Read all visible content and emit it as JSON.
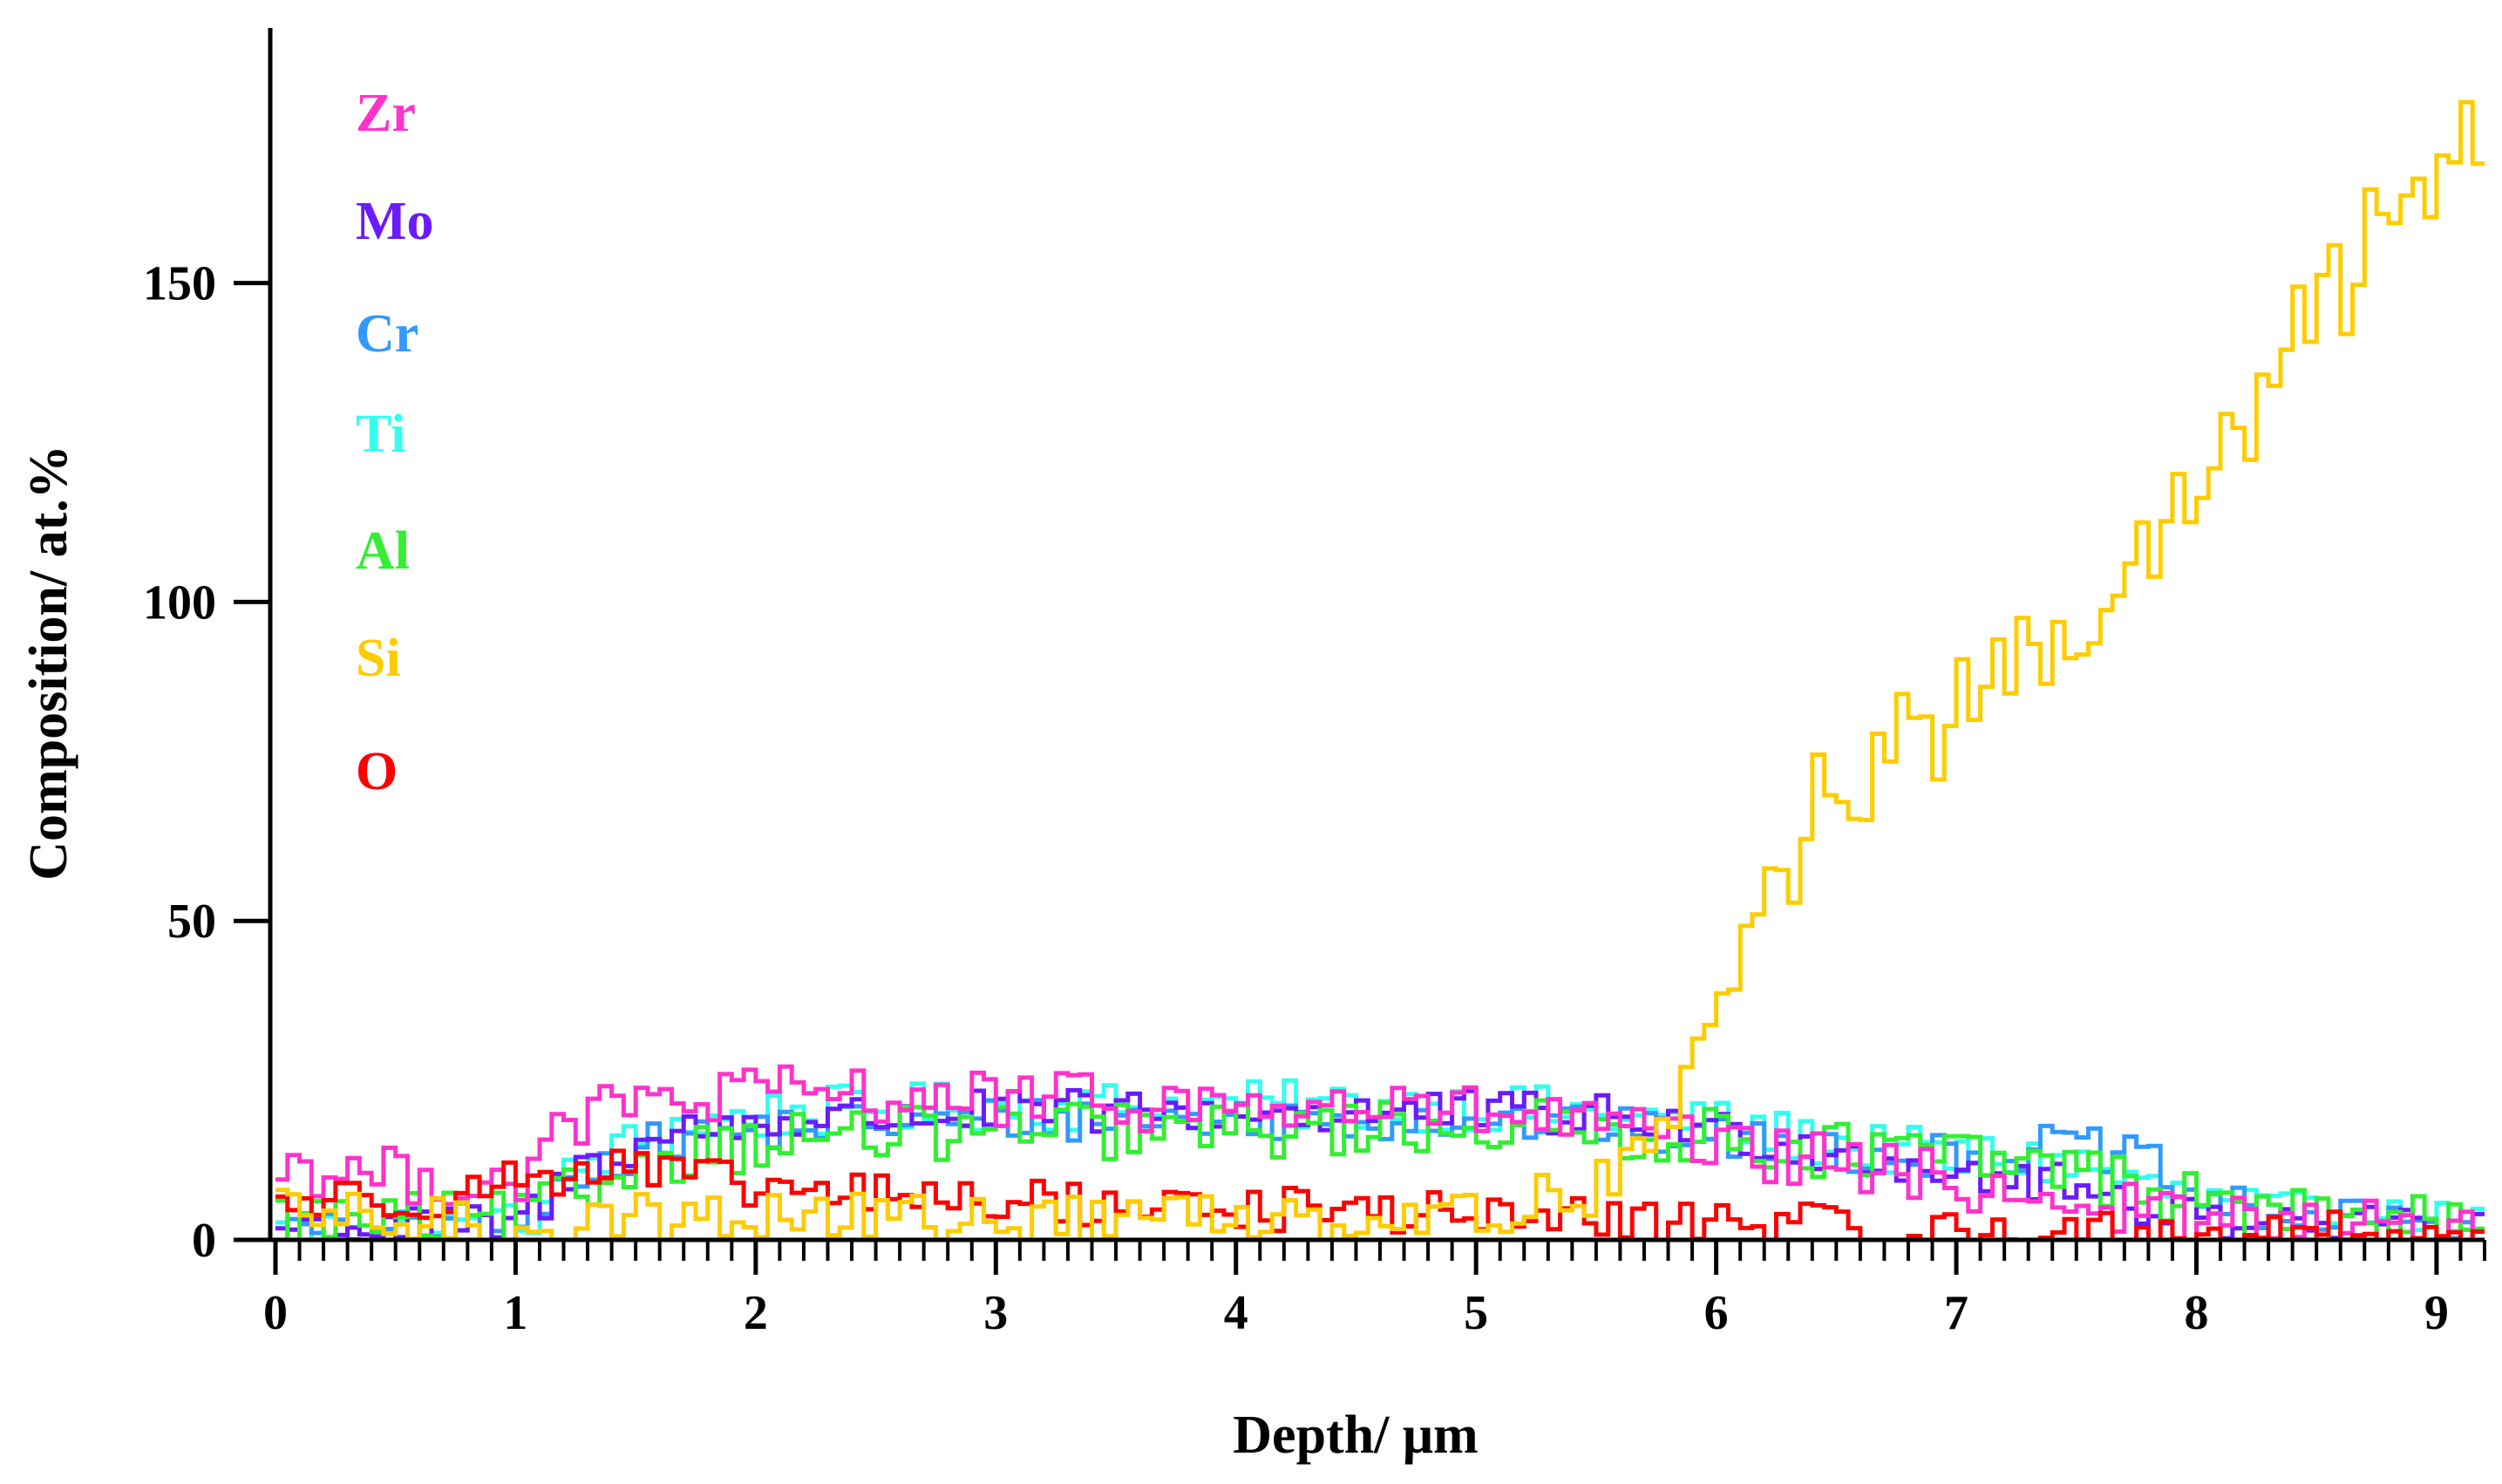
{
  "chart_data": {
    "type": "line",
    "title": "",
    "xlabel": "Depth/ μm",
    "ylabel": "Composition/ at.%",
    "xlim": [
      0,
      9.2
    ],
    "ylim": [
      0,
      190
    ],
    "x_ticks": [
      "0",
      "1",
      "2",
      "3",
      "4",
      "5",
      "6",
      "7",
      "8",
      "9"
    ],
    "y_ticks": [
      "0",
      "50",
      "100",
      "150"
    ],
    "grid": false,
    "legend_placement": "top-left",
    "step_width": 0.05,
    "series": [
      {
        "name": "Zr",
        "color": "#ff33cc",
        "points": [
          [
            0,
            12
          ],
          [
            0.5,
            10
          ],
          [
            1.0,
            9
          ],
          [
            1.3,
            20
          ],
          [
            1.7,
            22
          ],
          [
            2.2,
            23
          ],
          [
            3.0,
            22
          ],
          [
            4.0,
            21
          ],
          [
            5.0,
            20
          ],
          [
            5.5,
            18
          ],
          [
            6.0,
            14
          ],
          [
            6.5,
            12
          ],
          [
            7.0,
            9
          ],
          [
            7.5,
            6
          ],
          [
            8.0,
            3
          ],
          [
            8.5,
            2
          ],
          [
            9.2,
            1
          ]
        ],
        "amp": 4.5
      },
      {
        "name": "Mo",
        "color": "#6a1bff",
        "points": [
          [
            0,
            2
          ],
          [
            1.0,
            2
          ],
          [
            1.3,
            12
          ],
          [
            1.7,
            17
          ],
          [
            2.2,
            19
          ],
          [
            3.0,
            20
          ],
          [
            4.0,
            20
          ],
          [
            5.0,
            20
          ],
          [
            5.7,
            19
          ],
          [
            6.0,
            17
          ],
          [
            6.5,
            14
          ],
          [
            7.0,
            11
          ],
          [
            7.5,
            8
          ],
          [
            8.0,
            4
          ],
          [
            8.5,
            2
          ],
          [
            9.2,
            1
          ]
        ],
        "amp": 3.5
      },
      {
        "name": "Cr",
        "color": "#3399ff",
        "points": [
          [
            0,
            1
          ],
          [
            1.0,
            1
          ],
          [
            1.3,
            12
          ],
          [
            1.7,
            16
          ],
          [
            2.2,
            18
          ],
          [
            3.0,
            19
          ],
          [
            4.0,
            19
          ],
          [
            5.0,
            19
          ],
          [
            6.0,
            16
          ],
          [
            6.5,
            14
          ],
          [
            7.0,
            13
          ],
          [
            7.5,
            15
          ],
          [
            7.8,
            12
          ],
          [
            8.0,
            6
          ],
          [
            8.5,
            3
          ],
          [
            9.2,
            2
          ]
        ],
        "amp": 3.5
      },
      {
        "name": "Ti",
        "color": "#33ffee",
        "points": [
          [
            0,
            1
          ],
          [
            1.0,
            2
          ],
          [
            1.3,
            12
          ],
          [
            1.7,
            18
          ],
          [
            2.2,
            20
          ],
          [
            3.0,
            21
          ],
          [
            4.0,
            21
          ],
          [
            5.0,
            21
          ],
          [
            6.0,
            18
          ],
          [
            6.5,
            15
          ],
          [
            7.0,
            13
          ],
          [
            7.5,
            12
          ],
          [
            8.0,
            6
          ],
          [
            8.5,
            3
          ],
          [
            9.2,
            2
          ]
        ],
        "amp": 4
      },
      {
        "name": "Al",
        "color": "#33ee33",
        "points": [
          [
            0,
            3
          ],
          [
            1.0,
            3
          ],
          [
            1.3,
            8
          ],
          [
            1.7,
            14
          ],
          [
            2.2,
            16
          ],
          [
            3.0,
            17
          ],
          [
            4.0,
            17
          ],
          [
            5.0,
            18
          ],
          [
            6.0,
            16
          ],
          [
            6.5,
            14
          ],
          [
            7.0,
            13
          ],
          [
            7.5,
            11
          ],
          [
            8.0,
            6
          ],
          [
            8.5,
            3
          ],
          [
            9.2,
            2
          ]
        ],
        "amp": 4.5
      },
      {
        "name": "Si",
        "color": "#ffcc00",
        "points": [
          [
            0,
            4
          ],
          [
            1.0,
            2
          ],
          [
            1.3,
            3
          ],
          [
            2.0,
            4
          ],
          [
            3.0,
            3
          ],
          [
            4.0,
            4
          ],
          [
            5.0,
            4
          ],
          [
            5.5,
            8
          ],
          [
            5.8,
            20
          ],
          [
            6.0,
            33
          ],
          [
            6.1,
            45
          ],
          [
            6.3,
            60
          ],
          [
            6.5,
            72
          ],
          [
            7.0,
            82
          ],
          [
            7.5,
            95
          ],
          [
            8.0,
            115
          ],
          [
            8.5,
            145
          ],
          [
            9.0,
            168
          ],
          [
            9.2,
            178
          ]
        ],
        "amp": 4
      },
      {
        "name": "O",
        "color": "#ff0000",
        "points": [
          [
            0,
            6
          ],
          [
            0.8,
            7
          ],
          [
            1.0,
            10
          ],
          [
            1.5,
            11
          ],
          [
            2.0,
            8
          ],
          [
            3.0,
            6
          ],
          [
            4.0,
            5
          ],
          [
            5.0,
            4
          ],
          [
            5.5,
            3
          ],
          [
            6.0,
            3
          ],
          [
            6.5,
            2
          ],
          [
            7.0,
            1
          ],
          [
            8.0,
            1
          ],
          [
            9.2,
            1
          ]
        ],
        "amp": 3.5
      }
    ]
  },
  "legend": {
    "items": [
      {
        "label": "Zr",
        "color": "#ff33cc"
      },
      {
        "label": "Mo",
        "color": "#6a1bff"
      },
      {
        "label": "Cr",
        "color": "#3399ff"
      },
      {
        "label": "Ti",
        "color": "#33ffee"
      },
      {
        "label": "Al",
        "color": "#33ee33"
      },
      {
        "label": "Si",
        "color": "#ffcc00"
      },
      {
        "label": "O",
        "color": "#ff0000"
      }
    ]
  }
}
